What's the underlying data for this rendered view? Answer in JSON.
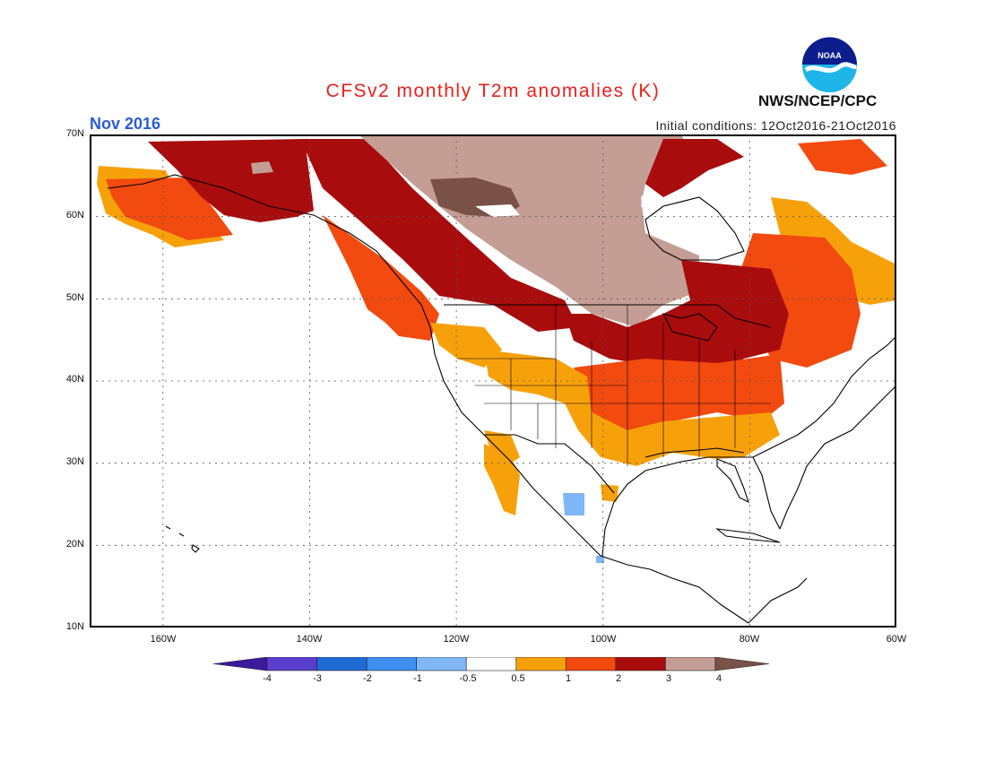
{
  "header": {
    "title": "CFSv2 monthly T2m anomalies (K)",
    "period": "Nov 2016",
    "initial_conditions": "Initial conditions: 12Oct2016-21Oct2016",
    "org": "NWS/NCEP/CPC",
    "logo_text": "NOAA"
  },
  "map": {
    "lat_labels": [
      "70N",
      "60N",
      "50N",
      "40N",
      "30N",
      "20N",
      "10N"
    ],
    "lon_labels": [
      "160W",
      "140W",
      "120W",
      "100W",
      "80W",
      "60W"
    ],
    "colors": {
      "below_-4": "#3b1a9c",
      "-4_-3": "#5a3fcf",
      "-3_-2": "#1f6bd6",
      "-2_-1": "#3f8ff0",
      "-1_-0.5": "#7fb6f5",
      "-0.5_0.5": "#ffffff",
      "0.5_1": "#f7a10a",
      "1_2": "#f24a0f",
      "2_3": "#a80c0c",
      "3_4": "#c49e94",
      "above_4": "#7a5146"
    }
  },
  "colorbar": {
    "labels": [
      "-4",
      "-3",
      "-2",
      "-1",
      "-0.5",
      "0.5",
      "1",
      "2",
      "3",
      "4"
    ],
    "colors": [
      "#5a3fcf",
      "#1f6bd6",
      "#3f8ff0",
      "#7fb6f5",
      "#ffffff",
      "#f7a10a",
      "#f24a0f",
      "#a80c0c",
      "#c49e94"
    ],
    "end_low_color": "#3b1a9c",
    "end_high_color": "#7a5146"
  }
}
